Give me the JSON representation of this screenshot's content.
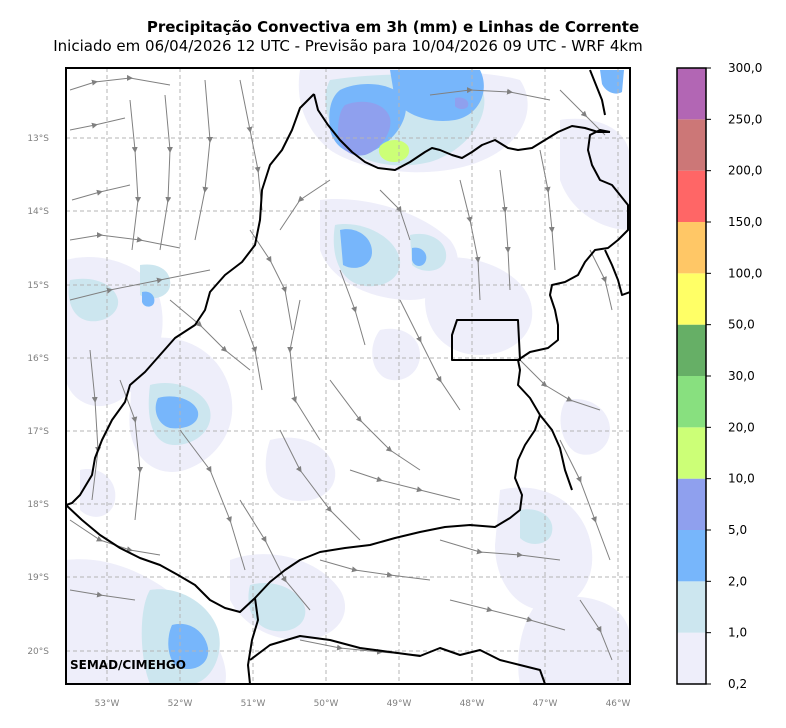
{
  "title": "Precipitação Convectiva em 3h (mm) e Linhas de Corrente",
  "subtitle": "Iniciado em 06/04/2026 12 UTC - Previsão para 10/04/2026 09 UTC - WRF 4km",
  "credit": "SEMAD/CIMEHGO",
  "lon_labels": [
    "53°W",
    "52°W",
    "51°W",
    "50°W",
    "49°W",
    "48°W",
    "47°W",
    "46°W"
  ],
  "lat_labels": [
    "13°S",
    "14°S",
    "15°S",
    "16°S",
    "17°S",
    "18°S",
    "19°S",
    "20°S"
  ],
  "colorbar": {
    "levels": [
      "0,2",
      "1,0",
      "2,0",
      "5,0",
      "10,0",
      "20,0",
      "30,0",
      "50,0",
      "100,0",
      "150,0",
      "200,0",
      "250,0",
      "300,0"
    ],
    "colors": [
      "#eeeefa",
      "#cce6ef",
      "#77b6fb",
      "#8fa0ee",
      "#ccff77",
      "#88e07f",
      "#66af66",
      "#ffff66",
      "#ffc766",
      "#ff6666",
      "#cc7777",
      "#b266b4"
    ]
  },
  "colors": {
    "border": "#000000",
    "streamline": "#808080",
    "grid": "#b4b4b4"
  }
}
